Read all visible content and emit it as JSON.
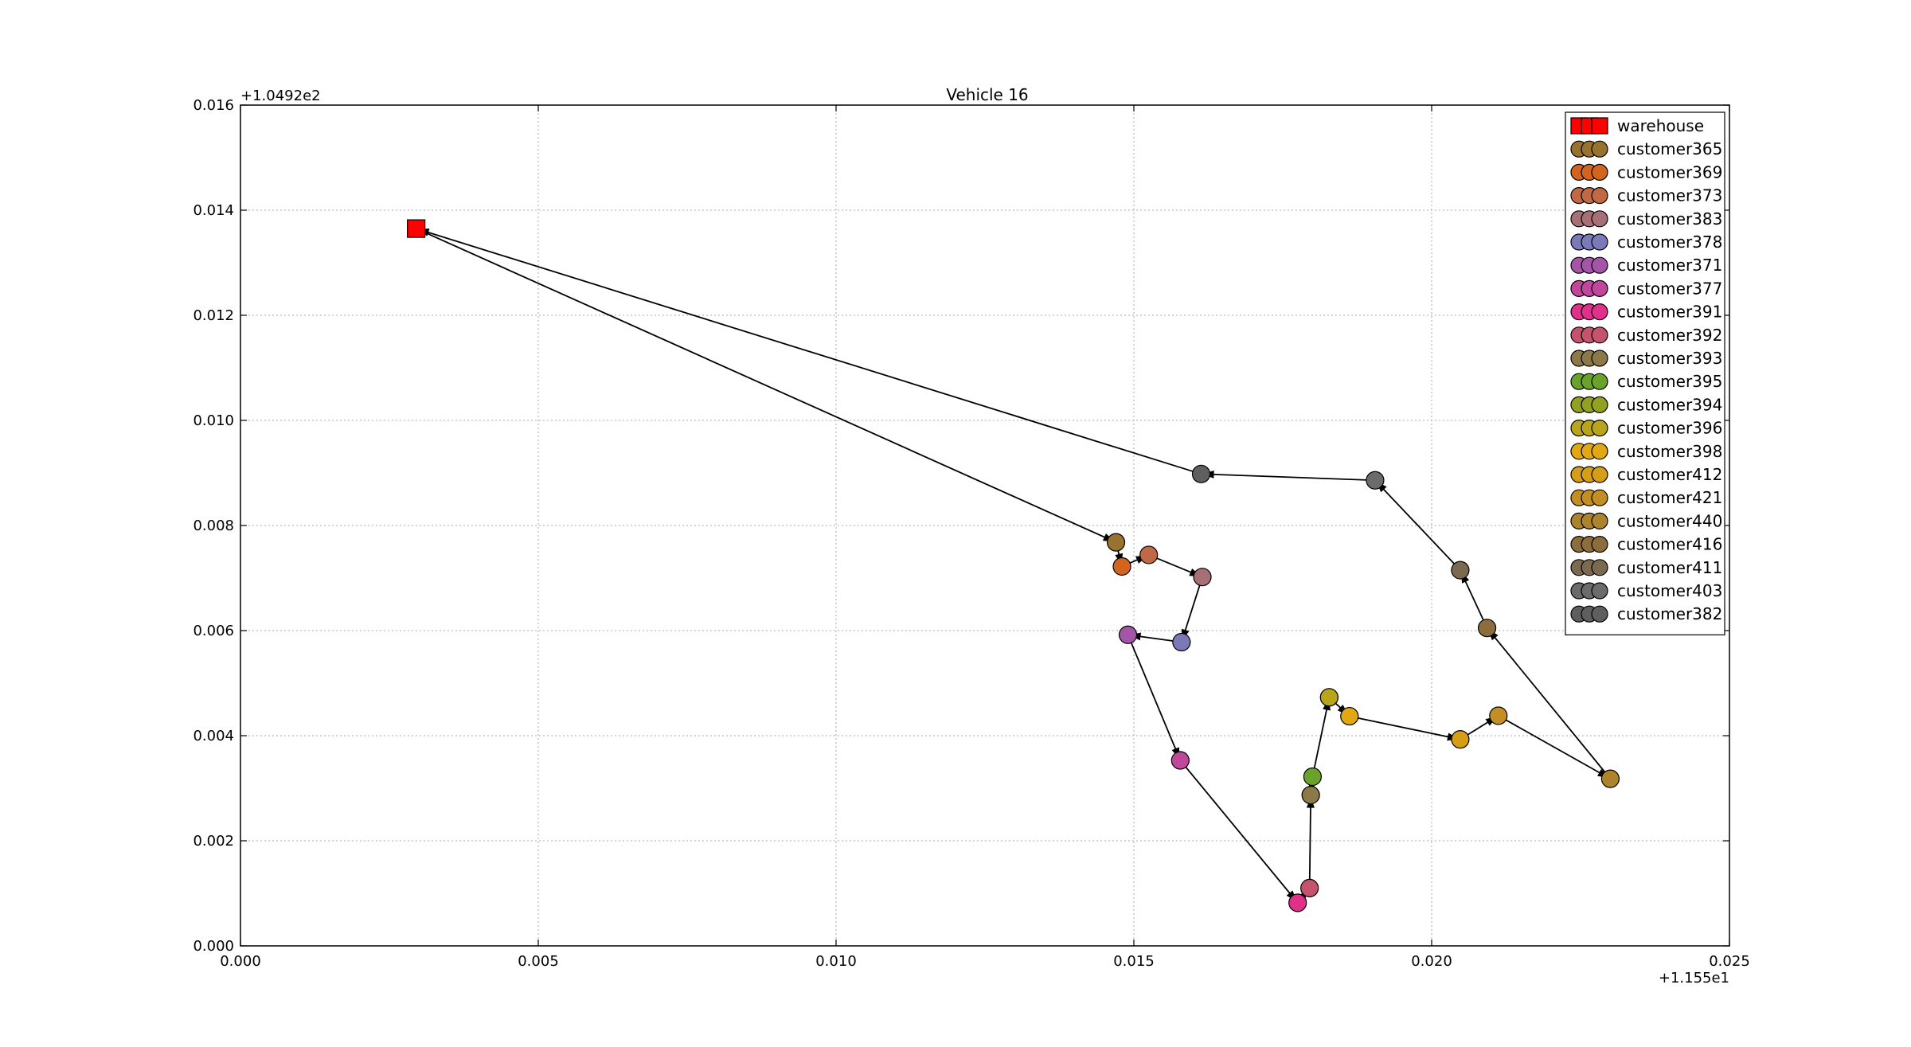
{
  "chart_data": {
    "type": "scatter",
    "title": "Vehicle 16",
    "xlabel": "",
    "ylabel": "",
    "x_offset_label": "+1.155e1",
    "y_offset_label": "+1.0492e2",
    "xlim": [
      0.0,
      0.025
    ],
    "ylim": [
      0.0,
      0.016
    ],
    "x_ticks": [
      "0.000",
      "0.005",
      "0.010",
      "0.015",
      "0.020",
      "0.025"
    ],
    "y_ticks": [
      "0.000",
      "0.002",
      "0.004",
      "0.006",
      "0.008",
      "0.010",
      "0.012",
      "0.014",
      "0.016"
    ],
    "grid": true,
    "legend_position": "top-right",
    "series": [
      {
        "name": "warehouse",
        "marker": "square",
        "color": "#ff0000",
        "x": 0.00295,
        "y": 0.01365
      },
      {
        "name": "customer365",
        "marker": "circle",
        "color": "#9a7230",
        "x": 0.0147,
        "y": 0.00768
      },
      {
        "name": "customer369",
        "marker": "circle",
        "color": "#d2641e",
        "x": 0.0148,
        "y": 0.00722
      },
      {
        "name": "customer373",
        "marker": "circle",
        "color": "#c06a45",
        "x": 0.01525,
        "y": 0.00744
      },
      {
        "name": "customer383",
        "marker": "circle",
        "color": "#a77077",
        "x": 0.01615,
        "y": 0.00702
      },
      {
        "name": "customer378",
        "marker": "circle",
        "color": "#7b79b8",
        "x": 0.0158,
        "y": 0.00578
      },
      {
        "name": "customer371",
        "marker": "circle",
        "color": "#a455a8",
        "x": 0.0149,
        "y": 0.00592
      },
      {
        "name": "customer377",
        "marker": "circle",
        "color": "#c1479c",
        "x": 0.01578,
        "y": 0.00353
      },
      {
        "name": "customer391",
        "marker": "circle",
        "color": "#e0308a",
        "x": 0.01775,
        "y": 0.00082
      },
      {
        "name": "customer392",
        "marker": "circle",
        "color": "#c6536e",
        "x": 0.01795,
        "y": 0.0011
      },
      {
        "name": "customer393",
        "marker": "circle",
        "color": "#8b7a48",
        "x": 0.01797,
        "y": 0.00287
      },
      {
        "name": "customer395",
        "marker": "circle",
        "color": "#6aa32b",
        "x": 0.018,
        "y": 0.00322
      },
      {
        "name": "customer394",
        "marker": "circle",
        "color": "#92a11f",
        "x": 0.01828,
        "y": 0.00473
      },
      {
        "name": "customer396",
        "marker": "circle",
        "color": "#b8a51c",
        "x": 0.01828,
        "y": 0.00473
      },
      {
        "name": "customer398",
        "marker": "circle",
        "color": "#e2a812",
        "x": 0.01862,
        "y": 0.00437
      },
      {
        "name": "customer412",
        "marker": "circle",
        "color": "#d69e16",
        "x": 0.02048,
        "y": 0.00393
      },
      {
        "name": "customer421",
        "marker": "circle",
        "color": "#c38f25",
        "x": 0.02112,
        "y": 0.00438
      },
      {
        "name": "customer440",
        "marker": "circle",
        "color": "#ad842c",
        "x": 0.023,
        "y": 0.00318
      },
      {
        "name": "customer416",
        "marker": "circle",
        "color": "#8c6d3b",
        "x": 0.02093,
        "y": 0.00605
      },
      {
        "name": "customer411",
        "marker": "circle",
        "color": "#7b6a4f",
        "x": 0.02048,
        "y": 0.00715
      },
      {
        "name": "customer403",
        "marker": "circle",
        "color": "#6b6b6b",
        "x": 0.01905,
        "y": 0.00886
      },
      {
        "name": "customer382",
        "marker": "circle",
        "color": "#5f5f5f",
        "x": 0.01613,
        "y": 0.00898
      }
    ],
    "route_order": [
      "warehouse",
      "customer365",
      "customer369",
      "customer373",
      "customer383",
      "customer378",
      "customer371",
      "customer377",
      "customer391",
      "customer392",
      "customer393",
      "customer395",
      "customer394",
      "customer396",
      "customer398",
      "customer412",
      "customer421",
      "customer440",
      "customer416",
      "customer411",
      "customer403",
      "customer382",
      "warehouse"
    ]
  }
}
